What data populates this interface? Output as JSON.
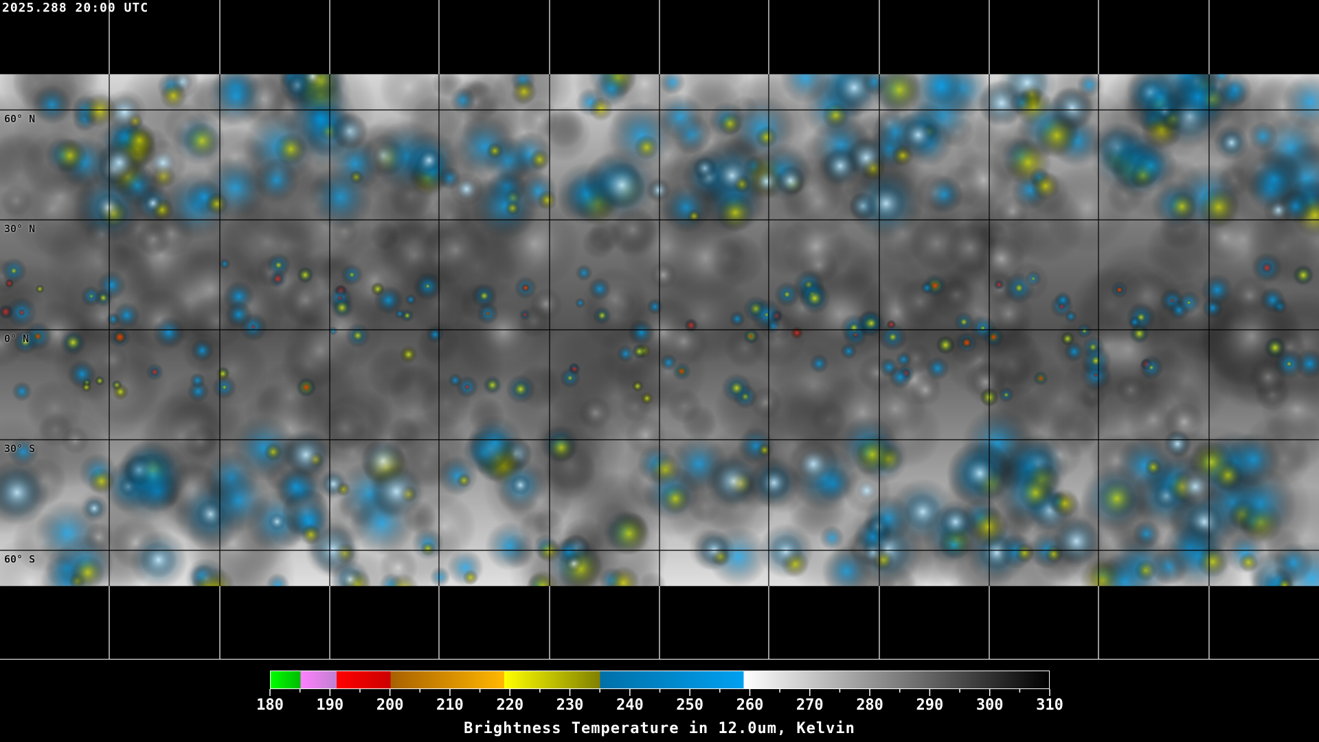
{
  "header": {
    "timestamp": "2025.288 20:00 UTC"
  },
  "map": {
    "projection": "equirectangular",
    "grid_lines": true,
    "grid_spacing_deg": 30,
    "lat_labels": [
      "60° N",
      "30° N",
      "0° N",
      "30° S",
      "60° S"
    ],
    "coastline_color": "#000000",
    "grid_color_over_data": "#000000",
    "grid_color_over_background": "#ffffff"
  },
  "colorbar": {
    "title": "Brightness Temperature in 12.0um, Kelvin",
    "min": 180,
    "max": 310,
    "tick_labels": [
      "180",
      "190",
      "200",
      "210",
      "220",
      "230",
      "240",
      "250",
      "260",
      "270",
      "280",
      "290",
      "300",
      "310"
    ],
    "segments": [
      {
        "from": 180,
        "to": 185,
        "start": "#00ff00",
        "end": "#00bb00"
      },
      {
        "from": 185,
        "to": 191,
        "start": "#ff80ff",
        "end": "#c080d0"
      },
      {
        "from": 191,
        "to": 200,
        "start": "#ff0000",
        "end": "#cc0000"
      },
      {
        "from": 200,
        "to": 219,
        "start": "#a86000",
        "end": "#ffb800"
      },
      {
        "from": 219,
        "to": 235,
        "start": "#ffff00",
        "end": "#808000"
      },
      {
        "from": 235,
        "to": 259,
        "start": "#0070a8",
        "end": "#00a0f0"
      },
      {
        "from": 259,
        "to": 310,
        "start": "#ffffff",
        "end": "#000000"
      }
    ]
  }
}
